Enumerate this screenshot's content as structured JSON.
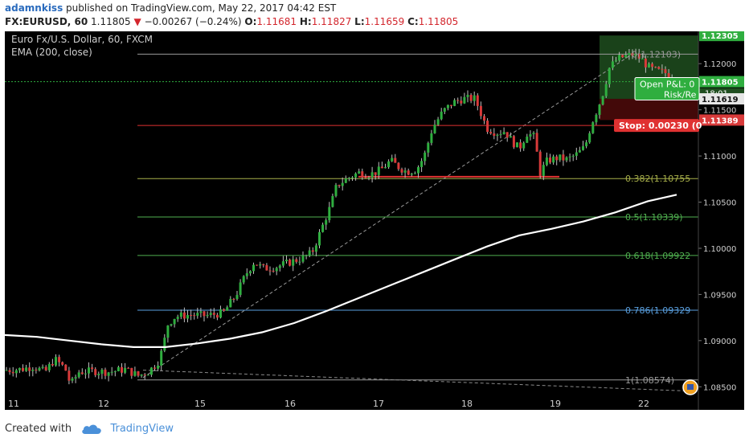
{
  "header": {
    "author": "adamnkiss",
    "published_text": "published on TradingView.com, May 22, 2017 04:42 EST",
    "symbol": "FX:EURUSD, 60",
    "last": "1.11805",
    "change": "−0.00267 (−0.24%)",
    "o_label": "O:",
    "o_value": "1.11681",
    "h_label": "H:",
    "h_value": "1.11827",
    "l_label": "L:",
    "l_value": "1.11659",
    "c_label": "C:",
    "c_value": "1.11805"
  },
  "chart_data": {
    "type": "candlestick",
    "title": "Euro Fx/U.S. Dollar, 60, FXCM",
    "indicator": "EMA (200, close)",
    "x_tick_labels": [
      "11",
      "12",
      "15",
      "16",
      "17",
      "18",
      "19",
      "22"
    ],
    "y_tick_labels": [
      "1.12000",
      "1.11500",
      "1.11000",
      "1.10500",
      "1.10000",
      "1.09500",
      "1.09000",
      "1.08500"
    ],
    "ylim": [
      1.0825,
      1.1235
    ],
    "price_labels": {
      "top": "1.12305",
      "last": "1.11805",
      "countdown": "18:01",
      "target_price": "1.11619",
      "stop_price": "1.11389"
    },
    "fib_levels": [
      {
        "ratio": "0",
        "value": 1.12103,
        "label": "0(1.12103)",
        "color": "#9a9a9a"
      },
      {
        "ratio": "0.382",
        "value": 1.10755,
        "label": "0.382(1.10755",
        "color": "#a8b04a"
      },
      {
        "ratio": "0.5",
        "value": 1.10339,
        "label": "0.5(1.10339)",
        "color": "#4fb04f"
      },
      {
        "ratio": "0.618",
        "value": 1.09922,
        "label": "0.618(1.09922",
        "color": "#4fb04f"
      },
      {
        "ratio": "0.786",
        "value": 1.09329,
        "label": "0.786(1.09329",
        "color": "#5aa0e0"
      },
      {
        "ratio": "1",
        "value": 1.08574,
        "label": "1(1.08574)",
        "color": "#9a9a9a"
      }
    ],
    "stop_line_value": 1.1133,
    "support_line_value": 1.10775,
    "position": {
      "entry": 1.11619,
      "stop": 1.11389,
      "target": 1.12305,
      "open_pl_label": "Open P&L: 0",
      "risk_reward_label": "Risk/Re",
      "stop_label": "Stop: 0.00230 (0"
    },
    "ema_points": [
      [
        0,
        1.0906
      ],
      [
        40,
        1.0904
      ],
      [
        80,
        1.09
      ],
      [
        120,
        1.0896
      ],
      [
        160,
        1.0893
      ],
      [
        200,
        1.0893
      ],
      [
        240,
        1.0897
      ],
      [
        280,
        1.0902
      ],
      [
        320,
        1.0909
      ],
      [
        360,
        1.0919
      ],
      [
        400,
        1.0932
      ],
      [
        440,
        1.0946
      ],
      [
        480,
        1.096
      ],
      [
        520,
        1.0974
      ],
      [
        560,
        1.0988
      ],
      [
        600,
        1.1002
      ],
      [
        640,
        1.1014
      ],
      [
        680,
        1.1021
      ],
      [
        720,
        1.1029
      ],
      [
        760,
        1.1039
      ],
      [
        800,
        1.1051
      ],
      [
        836,
        1.1058
      ]
    ],
    "price_path": [
      [
        0,
        1.0868
      ],
      [
        20,
        1.0869
      ],
      [
        35,
        1.0872
      ],
      [
        50,
        1.0866
      ],
      [
        62,
        1.088
      ],
      [
        75,
        1.087
      ],
      [
        82,
        1.0852
      ],
      [
        92,
        1.0866
      ],
      [
        110,
        1.0867
      ],
      [
        130,
        1.0866
      ],
      [
        150,
        1.0869
      ],
      [
        166,
        1.0862
      ],
      [
        178,
        1.0866
      ],
      [
        190,
        1.0876
      ],
      [
        196,
        1.089
      ],
      [
        203,
        1.0918
      ],
      [
        212,
        1.0926
      ],
      [
        230,
        1.0928
      ],
      [
        250,
        1.0927
      ],
      [
        272,
        1.093
      ],
      [
        288,
        1.095
      ],
      [
        300,
        1.0972
      ],
      [
        310,
        1.0985
      ],
      [
        322,
        1.0978
      ],
      [
        338,
        1.098
      ],
      [
        355,
        1.0985
      ],
      [
        372,
        1.099
      ],
      [
        382,
        1.0995
      ],
      [
        390,
        1.1012
      ],
      [
        398,
        1.103
      ],
      [
        405,
        1.1045
      ],
      [
        413,
        1.1068
      ],
      [
        425,
        1.1075
      ],
      [
        440,
        1.1082
      ],
      [
        455,
        1.108
      ],
      [
        468,
        1.1085
      ],
      [
        480,
        1.1095
      ],
      [
        490,
        1.1088
      ],
      [
        500,
        1.1083
      ],
      [
        512,
        1.1085
      ],
      [
        522,
        1.11
      ],
      [
        532,
        1.113
      ],
      [
        545,
        1.1148
      ],
      [
        558,
        1.1158
      ],
      [
        570,
        1.1162
      ],
      [
        585,
        1.1162
      ],
      [
        600,
        1.113
      ],
      [
        612,
        1.1125
      ],
      [
        622,
        1.1127
      ],
      [
        632,
        1.1115
      ],
      [
        640,
        1.1108
      ],
      [
        650,
        1.1125
      ],
      [
        660,
        1.112
      ],
      [
        665,
        1.108
      ],
      [
        675,
        1.1095
      ],
      [
        688,
        1.1098
      ],
      [
        700,
        1.1096
      ],
      [
        712,
        1.1102
      ],
      [
        722,
        1.111
      ],
      [
        730,
        1.1135
      ],
      [
        738,
        1.1152
      ],
      [
        745,
        1.117
      ],
      [
        752,
        1.1195
      ],
      [
        762,
        1.1205
      ],
      [
        772,
        1.1208
      ],
      [
        782,
        1.121
      ],
      [
        792,
        1.1205
      ],
      [
        802,
        1.1195
      ],
      [
        812,
        1.1192
      ],
      [
        822,
        1.119
      ],
      [
        832,
        1.1183
      ],
      [
        840,
        1.118
      ]
    ],
    "colors": {
      "background": "#000000",
      "up": "#2fae3f",
      "down": "#d83a3a",
      "ema": "#ffffff",
      "stop_line": "#e03232",
      "profit_zone": "#1f4d1f",
      "loss_zone": "#4a0a0a",
      "axis_text": "#cfcfcf"
    }
  },
  "footer": {
    "created_with": "Created with",
    "brand": "TradingView"
  }
}
